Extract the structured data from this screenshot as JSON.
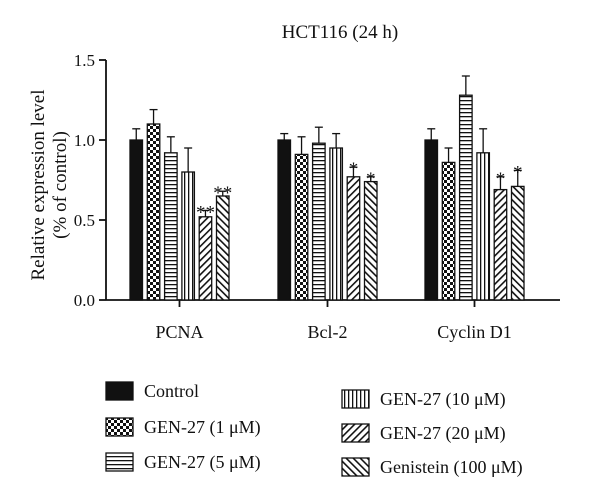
{
  "chart_data": {
    "type": "bar",
    "title": "HCT116 (24 h)",
    "xlabel": "",
    "ylabel_line1": "Relative expression level",
    "ylabel_line2": "(% of control)",
    "ylim": [
      0,
      1.5
    ],
    "yticks": [
      0.0,
      0.5,
      1.0,
      1.5
    ],
    "ytick_labels": [
      "0.0",
      "0.5",
      "1.0",
      "1.5"
    ],
    "categories": [
      "PCNA",
      "Bcl-2",
      "Cyclin D1"
    ],
    "grid": false,
    "legend_position": "bottom",
    "series": [
      {
        "name": "Control",
        "pattern": "solid",
        "values": [
          1.0,
          1.0,
          1.0
        ],
        "errors": [
          0.07,
          0.04,
          0.07
        ],
        "stars": [
          "",
          "",
          ""
        ]
      },
      {
        "name": "GEN-27 (1 μM)",
        "pattern": "checker",
        "values": [
          1.1,
          0.91,
          0.86
        ],
        "errors": [
          0.09,
          0.11,
          0.09
        ],
        "stars": [
          "",
          "",
          ""
        ]
      },
      {
        "name": "GEN-27 (5 μM)",
        "pattern": "hlines",
        "values": [
          0.92,
          0.98,
          1.28
        ],
        "errors": [
          0.1,
          0.1,
          0.12
        ],
        "stars": [
          "",
          "",
          ""
        ]
      },
      {
        "name": "GEN-27 (10 μM)",
        "pattern": "vlines",
        "values": [
          0.8,
          0.95,
          0.92
        ],
        "errors": [
          0.15,
          0.09,
          0.15
        ],
        "stars": [
          "",
          "",
          ""
        ]
      },
      {
        "name": "GEN-27 (20 μM)",
        "pattern": "diag",
        "values": [
          0.52,
          0.77,
          0.69
        ],
        "errors": [
          0.04,
          0.06,
          0.08
        ],
        "stars": [
          "**",
          "*",
          "*"
        ]
      },
      {
        "name": "Genistein (100 μM)",
        "pattern": "diag-rev",
        "values": [
          0.65,
          0.74,
          0.71
        ],
        "errors": [
          0.03,
          0.03,
          0.1
        ],
        "stars": [
          "**",
          "*",
          "*"
        ]
      }
    ],
    "colors": {
      "ink": "#111111",
      "background": "#ffffff"
    }
  }
}
